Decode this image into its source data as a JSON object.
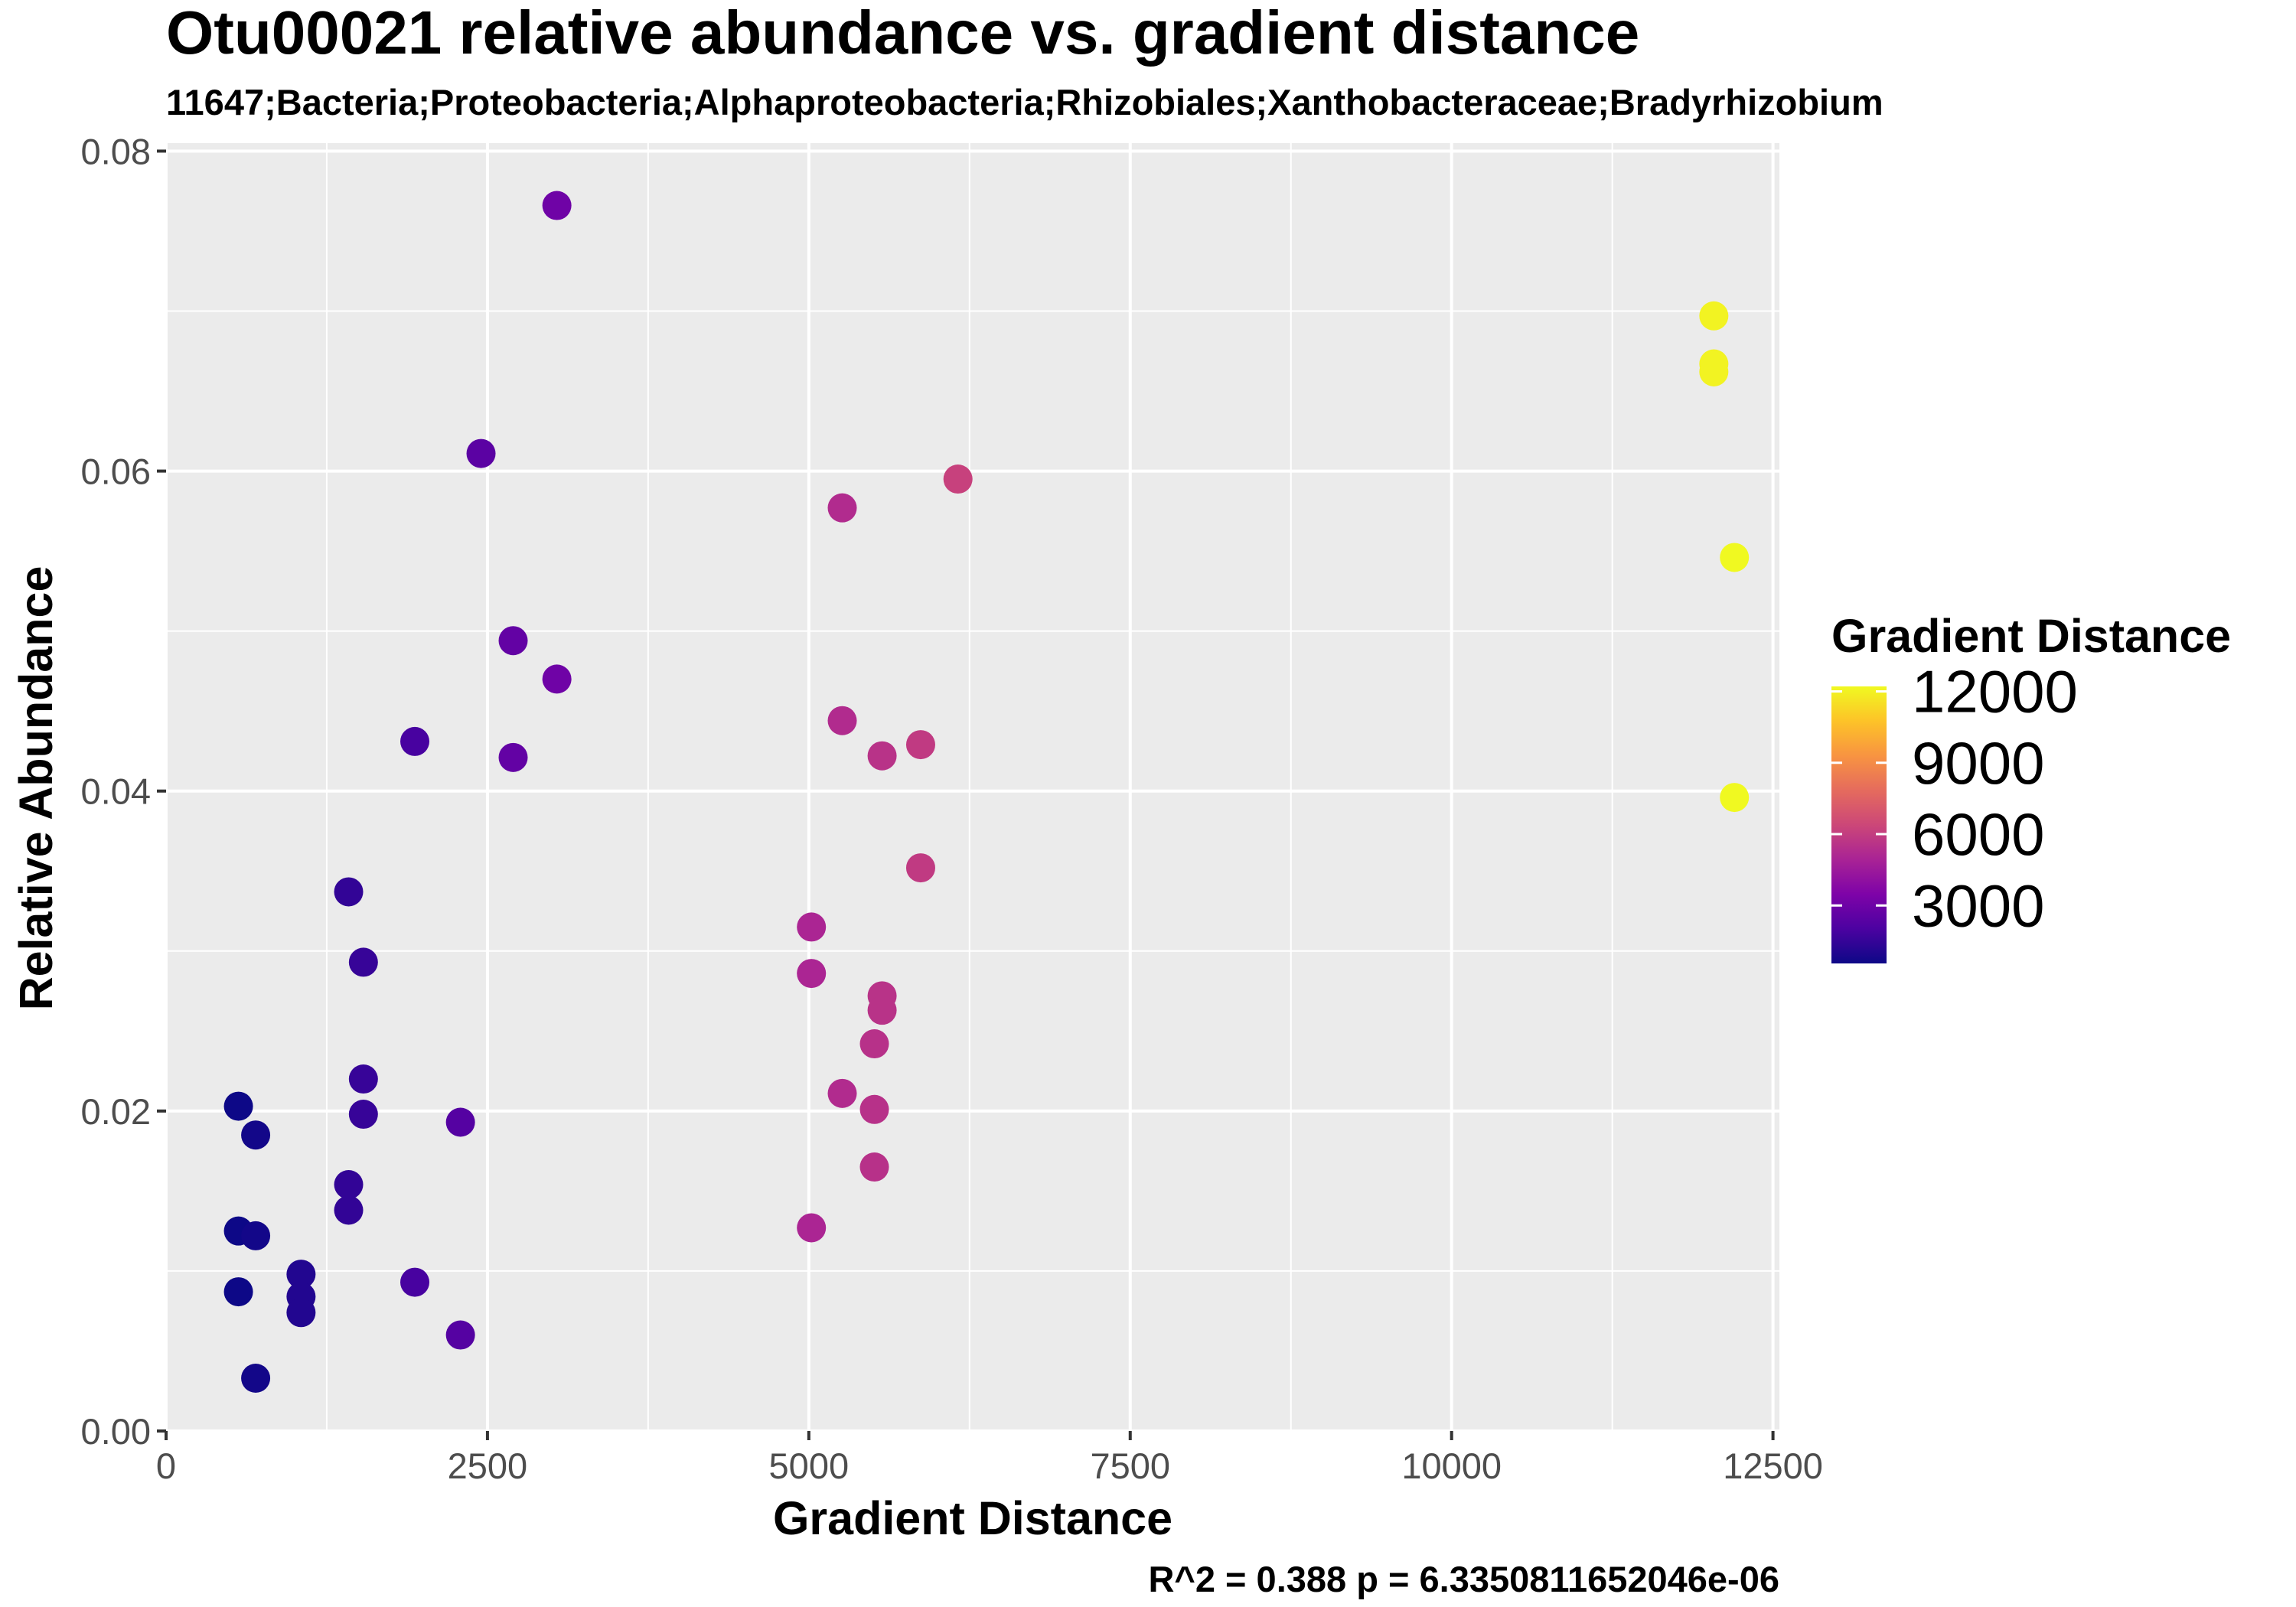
{
  "chart_data": {
    "type": "scatter",
    "title": "Otu00021 relative abundance vs. gradient distance",
    "subtitle": "11647;Bacteria;Proteobacteria;Alphaproteobacteria;Rhizobiales;Xanthobacteraceae;Bradyrhizobium",
    "xlabel": "Gradient Distance",
    "ylabel": "Relative Abundance",
    "caption": "R^2 =  0.388 p = 6.3350811652046e-06",
    "xlim": [
      0,
      12550
    ],
    "ylim": [
      0,
      0.0805
    ],
    "x_ticks": [
      0,
      2500,
      5000,
      7500,
      10000,
      12500
    ],
    "x_tick_labels": [
      "0",
      "2500",
      "5000",
      "7500",
      "10000",
      "12500"
    ],
    "y_ticks": [
      0,
      0.02,
      0.04,
      0.06,
      0.08
    ],
    "y_tick_labels": [
      "0.00",
      "0.02",
      "0.04",
      "0.06",
      "0.08"
    ],
    "grid": true,
    "panel_background": "#ebebeb",
    "legend": {
      "title": "Gradient Distance",
      "position": "right",
      "breaks": [
        3000,
        6000,
        9000,
        12000
      ],
      "labels": [
        "3000",
        "6000",
        "9000",
        "12000"
      ],
      "range": [
        563,
        12210
      ],
      "palette": "plasma"
    },
    "points": [
      {
        "x": 563,
        "y": 0.0203
      },
      {
        "x": 563,
        "y": 0.0125
      },
      {
        "x": 563,
        "y": 0.0087
      },
      {
        "x": 697,
        "y": 0.0185
      },
      {
        "x": 697,
        "y": 0.0122
      },
      {
        "x": 697,
        "y": 0.0033
      },
      {
        "x": 1050,
        "y": 0.0098
      },
      {
        "x": 1050,
        "y": 0.0084
      },
      {
        "x": 1050,
        "y": 0.0074
      },
      {
        "x": 1420,
        "y": 0.0337
      },
      {
        "x": 1420,
        "y": 0.0154
      },
      {
        "x": 1420,
        "y": 0.0138
      },
      {
        "x": 1535,
        "y": 0.0293
      },
      {
        "x": 1535,
        "y": 0.022
      },
      {
        "x": 1535,
        "y": 0.0198
      },
      {
        "x": 1935,
        "y": 0.0431
      },
      {
        "x": 1935,
        "y": 0.0093
      },
      {
        "x": 2290,
        "y": 0.0193
      },
      {
        "x": 2290,
        "y": 0.006
      },
      {
        "x": 2450,
        "y": 0.0611
      },
      {
        "x": 2700,
        "y": 0.0494
      },
      {
        "x": 2700,
        "y": 0.0421
      },
      {
        "x": 3040,
        "y": 0.0766
      },
      {
        "x": 3040,
        "y": 0.047
      },
      {
        "x": 5020,
        "y": 0.0315
      },
      {
        "x": 5020,
        "y": 0.0286
      },
      {
        "x": 5020,
        "y": 0.0127
      },
      {
        "x": 5260,
        "y": 0.0577
      },
      {
        "x": 5260,
        "y": 0.0444
      },
      {
        "x": 5260,
        "y": 0.0211
      },
      {
        "x": 5510,
        "y": 0.0242
      },
      {
        "x": 5510,
        "y": 0.0201
      },
      {
        "x": 5510,
        "y": 0.0165
      },
      {
        "x": 5570,
        "y": 0.0422
      },
      {
        "x": 5570,
        "y": 0.0272
      },
      {
        "x": 5570,
        "y": 0.0263
      },
      {
        "x": 5870,
        "y": 0.0429
      },
      {
        "x": 5870,
        "y": 0.0352
      },
      {
        "x": 6160,
        "y": 0.0595
      },
      {
        "x": 12040,
        "y": 0.0697
      },
      {
        "x": 12040,
        "y": 0.0667
      },
      {
        "x": 12040,
        "y": 0.0662
      },
      {
        "x": 12200,
        "y": 0.0546
      },
      {
        "x": 12200,
        "y": 0.0396
      }
    ]
  }
}
